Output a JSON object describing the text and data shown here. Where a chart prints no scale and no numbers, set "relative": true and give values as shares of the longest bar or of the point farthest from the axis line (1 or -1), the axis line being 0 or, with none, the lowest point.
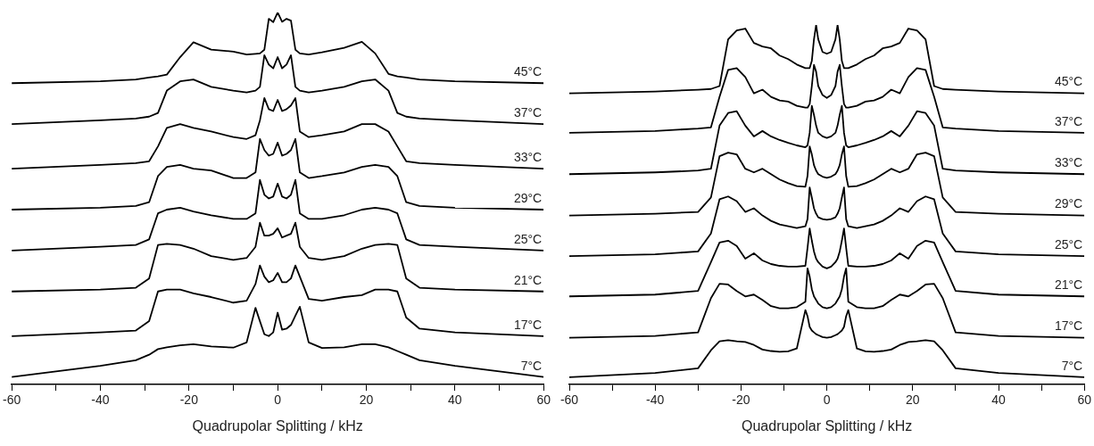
{
  "chart_data": [
    {
      "type": "line",
      "relative": true,
      "xlabel": "Quadrupolar Splitting / kHz",
      "tick_labels": "x",
      "xlim": [
        -60,
        60
      ],
      "xticks": [
        -60,
        {
          "value": -50,
          "label": null
        },
        -40,
        {
          "value": -30,
          "label": null
        },
        -20,
        {
          "value": -10,
          "label": null
        },
        0,
        {
          "value": 10,
          "label": null
        },
        20,
        {
          "value": 30,
          "label": null
        },
        40,
        {
          "value": 50,
          "label": null
        },
        60
      ],
      "x": [
        -60,
        -40,
        -32,
        -29,
        -27,
        -25,
        -22,
        -19,
        -15,
        -10,
        -7,
        -5,
        -4,
        -3,
        -2,
        -1,
        0,
        1,
        2,
        3,
        4,
        5,
        7,
        10,
        15,
        19,
        22,
        25,
        27,
        29,
        32,
        40,
        60
      ],
      "series": [
        {
          "name": "45°C",
          "color": "#000000",
          "values": [
            0.81,
            0.815,
            0.82,
            0.825,
            0.828,
            0.833,
            0.88,
            0.92,
            0.9,
            0.895,
            0.887,
            0.889,
            0.89,
            0.9,
            0.983,
            0.974,
            1.0,
            0.975,
            0.983,
            0.978,
            0.9,
            0.89,
            0.887,
            0.893,
            0.905,
            0.921,
            0.89,
            0.835,
            0.828,
            0.825,
            0.82,
            0.815,
            0.81
          ]
        },
        {
          "name": "37°C",
          "color": "#000000",
          "values": [
            0.7,
            0.71,
            0.715,
            0.72,
            0.73,
            0.79,
            0.815,
            0.82,
            0.8,
            0.79,
            0.785,
            0.79,
            0.8,
            0.885,
            0.86,
            0.85,
            0.88,
            0.85,
            0.86,
            0.885,
            0.8,
            0.79,
            0.785,
            0.79,
            0.8,
            0.815,
            0.82,
            0.79,
            0.73,
            0.72,
            0.715,
            0.71,
            0.7
          ]
        },
        {
          "name": "33°C",
          "color": "#000000",
          "values": [
            0.58,
            0.59,
            0.595,
            0.6,
            0.64,
            0.69,
            0.7,
            0.69,
            0.68,
            0.665,
            0.66,
            0.67,
            0.71,
            0.77,
            0.74,
            0.735,
            0.765,
            0.735,
            0.74,
            0.75,
            0.77,
            0.68,
            0.665,
            0.67,
            0.68,
            0.7,
            0.7,
            0.68,
            0.64,
            0.6,
            0.595,
            0.59,
            0.58
          ]
        },
        {
          "name": "29°C",
          "color": "#000000",
          "values": [
            0.47,
            0.475,
            0.48,
            0.49,
            0.56,
            0.585,
            0.59,
            0.58,
            0.575,
            0.555,
            0.555,
            0.57,
            0.66,
            0.63,
            0.615,
            0.62,
            0.65,
            0.615,
            0.62,
            0.63,
            0.66,
            0.57,
            0.555,
            0.56,
            0.57,
            0.585,
            0.59,
            0.585,
            0.56,
            0.49,
            0.48,
            0.475,
            0.47
          ]
        },
        {
          "name": "25°C",
          "color": "#000000",
          "values": [
            0.36,
            0.37,
            0.375,
            0.39,
            0.46,
            0.47,
            0.475,
            0.465,
            0.455,
            0.445,
            0.445,
            0.46,
            0.55,
            0.51,
            0.5,
            0.505,
            0.54,
            0.505,
            0.5,
            0.51,
            0.55,
            0.46,
            0.445,
            0.445,
            0.455,
            0.47,
            0.475,
            0.47,
            0.46,
            0.39,
            0.375,
            0.37,
            0.36
          ]
        },
        {
          "name": "21°C",
          "color": "#000000",
          "values": [
            0.25,
            0.255,
            0.26,
            0.285,
            0.375,
            0.378,
            0.375,
            0.365,
            0.345,
            0.335,
            0.34,
            0.37,
            0.435,
            0.4,
            0.4,
            0.405,
            0.42,
            0.395,
            0.4,
            0.405,
            0.435,
            0.37,
            0.34,
            0.335,
            0.345,
            0.365,
            0.375,
            0.378,
            0.375,
            0.285,
            0.26,
            0.255,
            0.25
          ]
        },
        {
          "name": "17°C",
          "color": "#000000",
          "values": [
            0.13,
            0.14,
            0.145,
            0.17,
            0.25,
            0.255,
            0.255,
            0.245,
            0.235,
            0.22,
            0.225,
            0.27,
            0.32,
            0.29,
            0.275,
            0.28,
            0.3,
            0.275,
            0.275,
            0.285,
            0.32,
            0.29,
            0.23,
            0.225,
            0.235,
            0.24,
            0.255,
            0.255,
            0.25,
            0.18,
            0.15,
            0.14,
            0.13
          ]
        },
        {
          "name": "7°C",
          "color": "#000000",
          "values": [
            0.02,
            0.05,
            0.065,
            0.08,
            0.095,
            0.1,
            0.105,
            0.108,
            0.102,
            0.099,
            0.113,
            0.206,
            0.17,
            0.135,
            0.13,
            0.14,
            0.193,
            0.147,
            0.15,
            0.16,
            0.185,
            0.209,
            0.113,
            0.098,
            0.1,
            0.108,
            0.108,
            0.1,
            0.09,
            0.08,
            0.065,
            0.05,
            0.02
          ]
        }
      ]
    },
    {
      "type": "line",
      "relative": true,
      "xlabel": "Quadrupolar Splitting / kHz",
      "tick_labels": "x",
      "xlim": [
        -60,
        60
      ],
      "xticks": [
        -60,
        {
          "value": -50,
          "label": null
        },
        -40,
        {
          "value": -30,
          "label": null
        },
        -20,
        {
          "value": -10,
          "label": null
        },
        0,
        {
          "value": 10,
          "label": null
        },
        20,
        {
          "value": 30,
          "label": null
        },
        40,
        {
          "value": 50,
          "label": null
        },
        60
      ],
      "x": [
        -60,
        -40,
        -30,
        -27,
        -25,
        -23,
        -21,
        -19,
        -17,
        -15,
        -13,
        -11,
        -9,
        -7,
        -5,
        -4.5,
        -4,
        -3.5,
        -3,
        -2.5,
        -2,
        -1,
        0,
        1,
        2,
        2.5,
        3,
        3.5,
        4,
        4.5,
        5,
        7,
        9,
        11,
        13,
        15,
        17,
        19,
        21,
        23,
        25,
        27,
        30,
        40,
        60
      ],
      "series": [
        {
          "name": "45°C",
          "color": "#000000",
          "values": [
            0.81,
            0.815,
            0.82,
            0.822,
            0.83,
            0.96,
            0.985,
            0.99,
            0.95,
            0.94,
            0.935,
            0.915,
            0.905,
            0.89,
            0.88,
            0.88,
            0.88,
            0.9,
            0.96,
            1.0,
            0.96,
            0.925,
            0.92,
            0.925,
            0.96,
            1.0,
            0.96,
            0.9,
            0.88,
            0.88,
            0.88,
            0.89,
            0.905,
            0.915,
            0.935,
            0.94,
            0.95,
            0.99,
            0.985,
            0.96,
            0.83,
            0.822,
            0.82,
            0.815,
            0.81
          ]
        },
        {
          "name": "37°C",
          "color": "#000000",
          "values": [
            0.7,
            0.705,
            0.712,
            0.715,
            0.8,
            0.875,
            0.88,
            0.855,
            0.81,
            0.82,
            0.8,
            0.79,
            0.787,
            0.775,
            0.77,
            0.77,
            0.78,
            0.83,
            0.889,
            0.87,
            0.83,
            0.805,
            0.797,
            0.805,
            0.83,
            0.87,
            0.889,
            0.83,
            0.78,
            0.77,
            0.77,
            0.775,
            0.787,
            0.79,
            0.8,
            0.82,
            0.81,
            0.855,
            0.88,
            0.875,
            0.8,
            0.715,
            0.712,
            0.705,
            0.7
          ]
        },
        {
          "name": "33°C",
          "color": "#000000",
          "values": [
            0.585,
            0.59,
            0.595,
            0.6,
            0.72,
            0.755,
            0.76,
            0.72,
            0.69,
            0.705,
            0.69,
            0.68,
            0.672,
            0.665,
            0.66,
            0.665,
            0.7,
            0.775,
            0.75,
            0.72,
            0.7,
            0.69,
            0.686,
            0.69,
            0.7,
            0.72,
            0.75,
            0.775,
            0.7,
            0.665,
            0.66,
            0.665,
            0.672,
            0.68,
            0.69,
            0.705,
            0.69,
            0.72,
            0.76,
            0.755,
            0.72,
            0.6,
            0.595,
            0.59,
            0.585
          ]
        },
        {
          "name": "29°C",
          "color": "#000000",
          "values": [
            0.47,
            0.475,
            0.48,
            0.52,
            0.635,
            0.645,
            0.64,
            0.6,
            0.59,
            0.6,
            0.585,
            0.57,
            0.56,
            0.552,
            0.55,
            0.58,
            0.662,
            0.64,
            0.61,
            0.595,
            0.585,
            0.578,
            0.575,
            0.578,
            0.585,
            0.595,
            0.61,
            0.64,
            0.662,
            0.58,
            0.55,
            0.552,
            0.56,
            0.57,
            0.585,
            0.6,
            0.59,
            0.6,
            0.64,
            0.645,
            0.635,
            0.52,
            0.48,
            0.475,
            0.47
          ]
        },
        {
          "name": "25°C",
          "color": "#000000",
          "values": [
            0.357,
            0.362,
            0.37,
            0.42,
            0.515,
            0.523,
            0.51,
            0.48,
            0.49,
            0.47,
            0.455,
            0.445,
            0.44,
            0.435,
            0.44,
            0.46,
            0.548,
            0.52,
            0.49,
            0.475,
            0.465,
            0.46,
            0.458,
            0.46,
            0.465,
            0.475,
            0.49,
            0.52,
            0.548,
            0.46,
            0.44,
            0.435,
            0.44,
            0.445,
            0.455,
            0.47,
            0.49,
            0.48,
            0.51,
            0.523,
            0.515,
            0.42,
            0.37,
            0.362,
            0.357
          ]
        },
        {
          "name": "21°C",
          "color": "#000000",
          "values": [
            0.245,
            0.25,
            0.26,
            0.34,
            0.395,
            0.4,
            0.385,
            0.35,
            0.365,
            0.345,
            0.335,
            0.33,
            0.328,
            0.328,
            0.33,
            0.38,
            0.434,
            0.4,
            0.37,
            0.35,
            0.34,
            0.328,
            0.323,
            0.328,
            0.34,
            0.35,
            0.37,
            0.4,
            0.434,
            0.38,
            0.33,
            0.328,
            0.328,
            0.33,
            0.335,
            0.345,
            0.365,
            0.35,
            0.385,
            0.4,
            0.395,
            0.34,
            0.26,
            0.25,
            0.245
          ]
        },
        {
          "name": "17°C",
          "color": "#000000",
          "values": [
            0.13,
            0.135,
            0.145,
            0.24,
            0.28,
            0.278,
            0.26,
            0.245,
            0.25,
            0.235,
            0.218,
            0.212,
            0.212,
            0.215,
            0.23,
            0.323,
            0.3,
            0.265,
            0.245,
            0.235,
            0.225,
            0.215,
            0.212,
            0.215,
            0.225,
            0.235,
            0.245,
            0.265,
            0.3,
            0.323,
            0.23,
            0.215,
            0.212,
            0.212,
            0.218,
            0.235,
            0.25,
            0.245,
            0.26,
            0.278,
            0.28,
            0.24,
            0.145,
            0.135,
            0.13
          ]
        },
        {
          "name": "7°C",
          "color": "#000000",
          "values": [
            0.02,
            0.032,
            0.045,
            0.095,
            0.12,
            0.123,
            0.12,
            0.118,
            0.11,
            0.097,
            0.093,
            0.091,
            0.092,
            0.1,
            0.207,
            0.19,
            0.16,
            0.15,
            0.145,
            0.14,
            0.137,
            0.132,
            0.13,
            0.132,
            0.137,
            0.14,
            0.145,
            0.15,
            0.16,
            0.19,
            0.207,
            0.1,
            0.092,
            0.091,
            0.093,
            0.097,
            0.11,
            0.118,
            0.12,
            0.123,
            0.12,
            0.095,
            0.045,
            0.032,
            0.02
          ]
        }
      ]
    }
  ]
}
